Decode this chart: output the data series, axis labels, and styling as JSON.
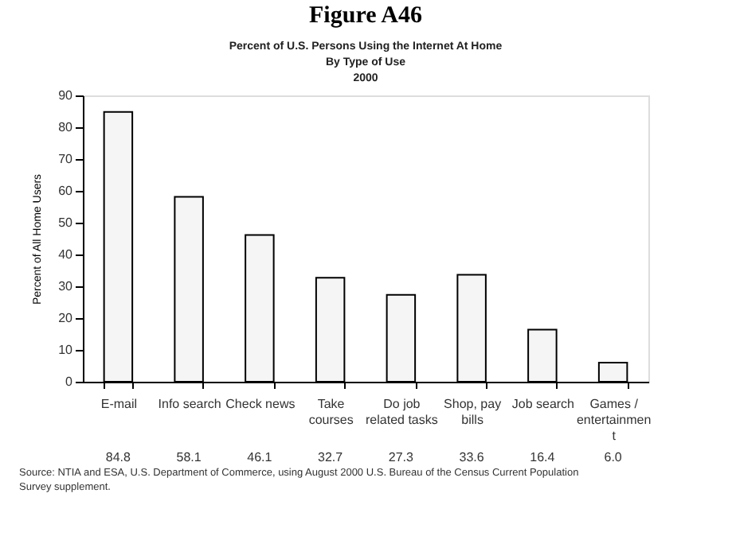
{
  "chart_data": {
    "type": "bar",
    "title": "Figure A46",
    "subtitle": "Percent of U.S. Persons Using the Internet At Home\nBy Type of Use\n2000",
    "ylabel": "Percent of All Home Users",
    "categories": [
      "E-mail",
      "Info search",
      "Check news",
      "Take\ncourses",
      "Do job\nrelated tasks",
      "Shop, pay\nbills",
      "Job search",
      "Games /\nentertainmen\nt"
    ],
    "values": [
      84.8,
      58.1,
      46.1,
      32.7,
      27.3,
      33.6,
      16.4,
      6.0
    ],
    "value_labels": [
      "84.8",
      "58.1",
      "46.1",
      "32.7",
      "27.3",
      "33.6",
      "16.4",
      "6.0"
    ],
    "color": "#f5f5f5",
    "ylim": [
      0,
      90
    ],
    "yticks": [
      0,
      10,
      20,
      30,
      40,
      50,
      60,
      70,
      80,
      90
    ],
    "grid": false,
    "annotations": [
      "Source:  NTIA and ESA, U.S. Department of Commerce, using August 2000 U.S. Bureau of the Census Current Population\nSurvey supplement."
    ]
  }
}
